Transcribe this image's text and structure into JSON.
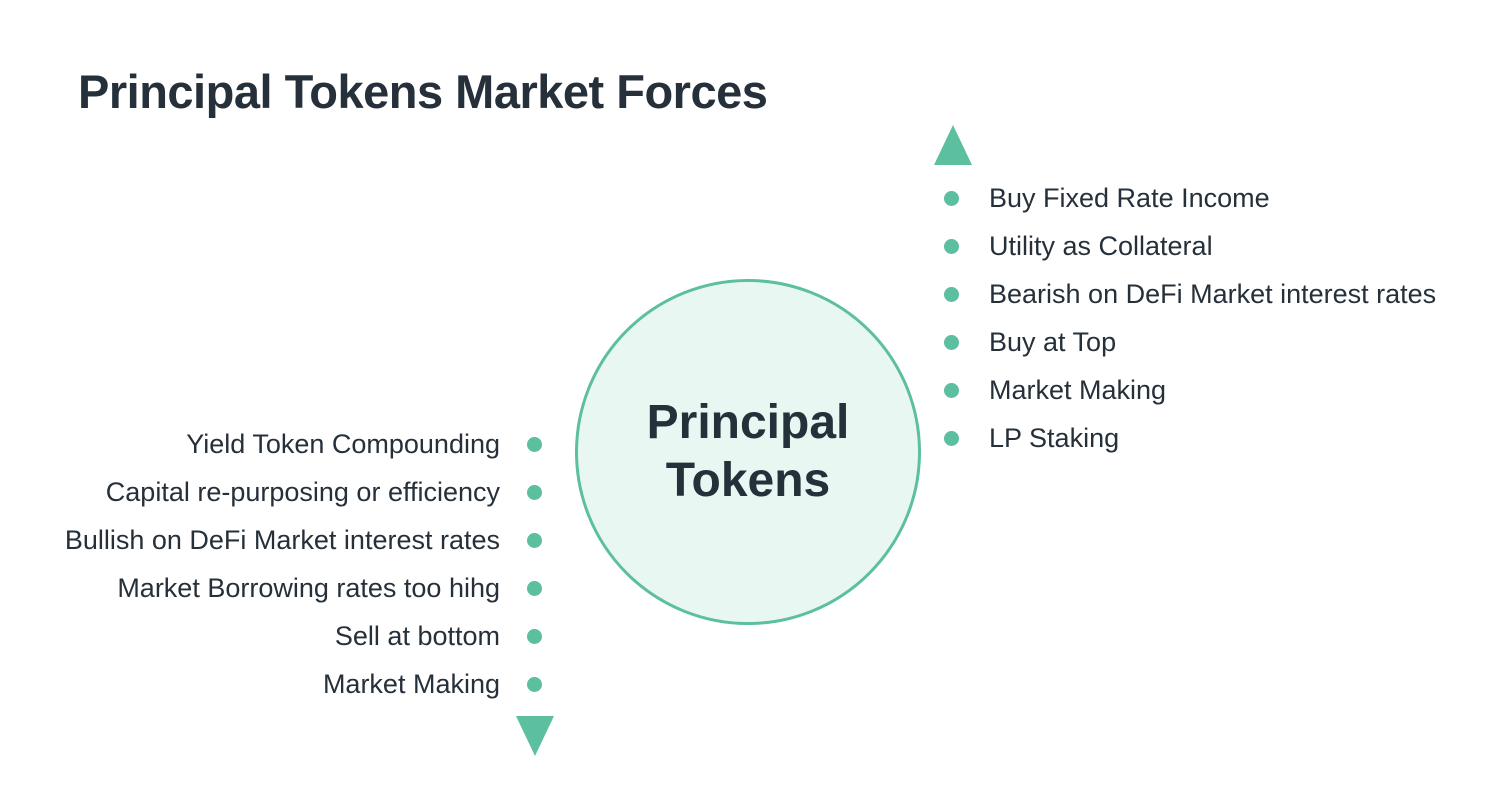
{
  "title": "Principal Tokens Market Forces",
  "center": {
    "line1": "Principal",
    "line2": "Tokens"
  },
  "up_forces": [
    "Buy Fixed Rate Income",
    "Utility as Collateral",
    "Bearish on DeFi Market interest rates",
    "Buy at Top",
    "Market Making",
    "LP Staking"
  ],
  "down_forces": [
    "Yield Token Compounding",
    "Capital re-purposing or efficiency",
    "Bullish on DeFi Market interest rates",
    "Market Borrowing rates too hihg",
    "Sell at bottom",
    "Market Making"
  ],
  "colors": {
    "accent": "#5cbf9f",
    "circle_fill": "#e8f7f2",
    "text": "#26303a"
  },
  "icons": {
    "up": "triangle-up-icon",
    "down": "triangle-down-icon",
    "bullet": "bullet-dot-icon"
  }
}
